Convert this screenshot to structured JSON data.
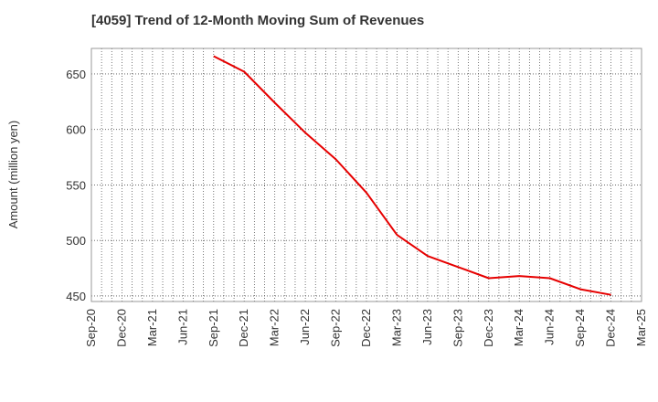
{
  "chart_data": {
    "type": "line",
    "title": "[4059]  Trend of 12-Month Moving Sum of Revenues",
    "xlabel": "",
    "ylabel": "Amount (million yen)",
    "x_ticks": [
      "Sep-20",
      "Dec-20",
      "Mar-21",
      "Jun-21",
      "Sep-21",
      "Dec-21",
      "Mar-22",
      "Jun-22",
      "Sep-22",
      "Dec-22",
      "Mar-23",
      "Jun-23",
      "Sep-23",
      "Dec-23",
      "Mar-24",
      "Jun-24",
      "Sep-24",
      "Dec-24",
      "Mar-25"
    ],
    "y_ticks": [
      450,
      500,
      550,
      600,
      650
    ],
    "ylim": [
      445,
      673
    ],
    "grid": true,
    "series": [
      {
        "color": "#e60000",
        "points": [
          {
            "x": "Sep-21",
            "y": 666
          },
          {
            "x": "Dec-21",
            "y": 652
          },
          {
            "x": "Mar-22",
            "y": 624
          },
          {
            "x": "Jun-22",
            "y": 597
          },
          {
            "x": "Sep-22",
            "y": 573
          },
          {
            "x": "Dec-22",
            "y": 543
          },
          {
            "x": "Mar-23",
            "y": 505
          },
          {
            "x": "Jun-23",
            "y": 486
          },
          {
            "x": "Sep-23",
            "y": 476
          },
          {
            "x": "Dec-23",
            "y": 466
          },
          {
            "x": "Mar-24",
            "y": 468
          },
          {
            "x": "Jun-24",
            "y": 466
          },
          {
            "x": "Sep-24",
            "y": 456
          },
          {
            "x": "Dec-24",
            "y": 451
          }
        ]
      }
    ]
  }
}
